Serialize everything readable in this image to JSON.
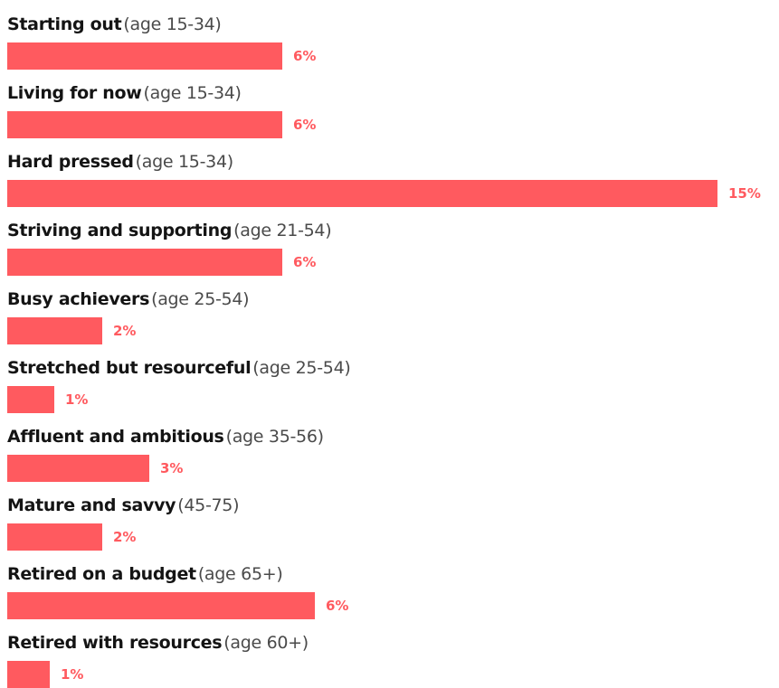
{
  "colors": {
    "bar": "#ff5a5f",
    "value_label": "#ff5a5f",
    "segment_name": "#141414",
    "age_text": "#4a4a4a"
  },
  "chart_data": {
    "type": "bar",
    "orientation": "horizontal",
    "title": "",
    "xlabel": "",
    "ylabel": "",
    "grid": false,
    "legend": "none",
    "categories": [
      "Starting out",
      "Living for now",
      "Hard pressed",
      "Striving and supporting",
      "Busy achievers",
      "Stretched but resourceful",
      "Affluent and ambitious",
      "Mature and savvy",
      "Retired on a budget",
      "Retired with resources"
    ],
    "age_ranges": [
      "(age 15-34)",
      "(age 15-34)",
      "(age 15-34)",
      "(age 21-54)",
      "(age 25-54)",
      "(age 25-54)",
      "(age 35-56)",
      "(45-75)",
      "(age 65+)",
      "(age 60+)"
    ],
    "values": [
      6,
      6,
      15,
      6,
      2,
      1,
      3,
      2,
      6,
      1
    ],
    "value_labels": [
      "6%",
      "6%",
      "15%",
      "6%",
      "2%",
      "1%",
      "3%",
      "2%",
      "6%",
      "1%"
    ],
    "bar_lengths_percent": [
      5.8,
      5.8,
      15,
      5.8,
      2.0,
      1.0,
      3.0,
      2.0,
      6.5,
      0.9
    ],
    "unit": "%",
    "xlim": [
      0,
      15
    ]
  }
}
